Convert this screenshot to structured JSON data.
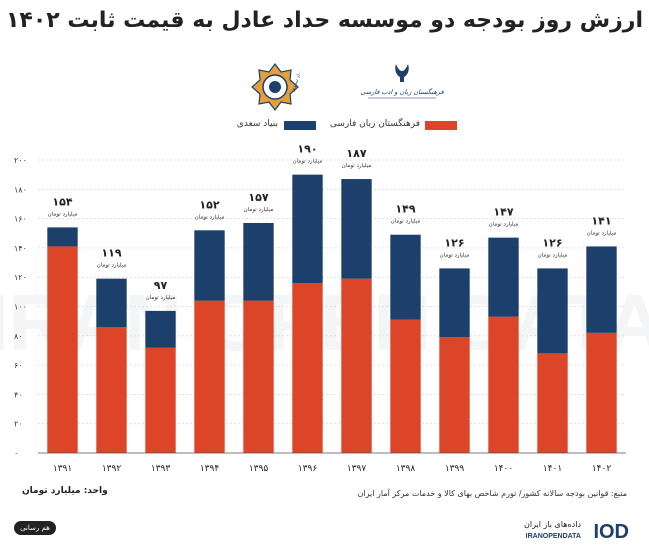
{
  "title": "ارزش روز بودجه دو موسسه حداد عادل به قیمت ثابت ۱۴۰۲",
  "logos": {
    "saadi": "بنیاد سعدی",
    "farhangestan": "فرهنگستان زبان و ادب فارسی"
  },
  "unit_label": "واحد: میلیارد تومان",
  "source_label": "منبع: قوانین بودجه سالانه کشور/ تورم شاخص بهای کالا و خدمات مرکز آمار ایران",
  "badge": "هم رسانی",
  "brand": {
    "name": "داده‌های باز ایران",
    "sub": "IRANOPENDATA",
    "mark": "IOD"
  },
  "watermark": "IRAN OPEN DATA",
  "colors": {
    "farhangestan": "#dc4527",
    "saadi": "#1d3f6b"
  },
  "chart_data": {
    "type": "bar",
    "stacked": true,
    "categories": [
      "۱۳۹۱",
      "۱۳۹۲",
      "۱۳۹۳",
      "۱۳۹۴",
      "۱۳۹۵",
      "۱۳۹۶",
      "۱۳۹۷",
      "۱۳۹۸",
      "۱۳۹۹",
      "۱۴۰۰",
      "۱۴۰۱",
      "۱۴۰۲"
    ],
    "series": [
      {
        "name": "فرهنگستان زبان فارسی",
        "values": [
          141,
          86,
          72,
          104,
          104,
          116,
          119,
          91,
          79,
          93,
          68,
          82
        ]
      },
      {
        "name": "بنیاد سعدی",
        "values": [
          13,
          33,
          25,
          48,
          53,
          74,
          68,
          58,
          47,
          54,
          58,
          59
        ]
      }
    ],
    "totals": [
      154,
      119,
      97,
      152,
      157,
      190,
      187,
      149,
      126,
      147,
      126,
      141
    ],
    "total_labels": [
      "۱۵۴",
      "۱۱۹",
      "۹۷",
      "۱۵۲",
      "۱۵۷",
      "۱۹۰",
      "۱۸۷",
      "۱۴۹",
      "۱۲۶",
      "۱۴۷",
      "۱۲۶",
      "۱۴۱"
    ],
    "total_sublabel": "میلیارد تومان",
    "yticks": [
      "۰",
      "۲۰",
      "۴۰",
      "۶۰",
      "۸۰",
      "۱۰۰",
      "۱۲۰",
      "۱۴۰",
      "۱۶۰",
      "۱۸۰",
      "۲۰۰"
    ],
    "ylim": [
      0,
      200
    ],
    "grid": true,
    "legend_position": "top-center"
  }
}
